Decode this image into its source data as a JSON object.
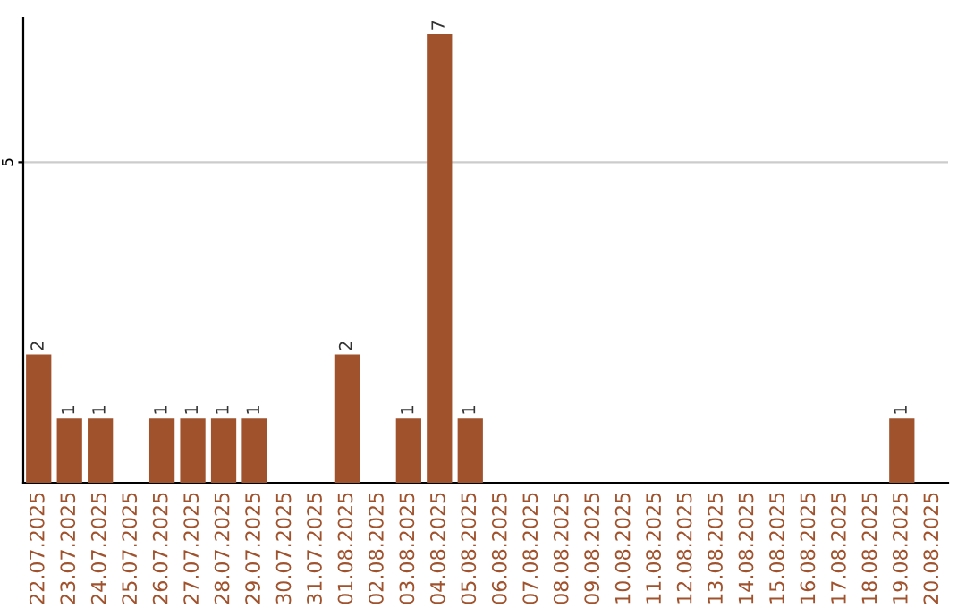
{
  "chart_data": {
    "type": "bar",
    "categories": [
      "22.07.2025",
      "23.07.2025",
      "24.07.2025",
      "25.07.2025",
      "26.07.2025",
      "27.07.2025",
      "28.07.2025",
      "29.07.2025",
      "30.07.2025",
      "31.07.2025",
      "01.08.2025",
      "02.08.2025",
      "03.08.2025",
      "04.08.2025",
      "05.08.2025",
      "06.08.2025",
      "07.08.2025",
      "08.08.2025",
      "09.08.2025",
      "10.08.2025",
      "11.08.2025",
      "12.08.2025",
      "13.08.2025",
      "14.08.2025",
      "15.08.2025",
      "16.08.2025",
      "17.08.2025",
      "18.08.2025",
      "19.08.2025",
      "20.08.2025"
    ],
    "values": [
      2,
      1,
      1,
      0,
      1,
      1,
      1,
      1,
      0,
      0,
      2,
      0,
      1,
      7,
      1,
      0,
      0,
      0,
      0,
      0,
      0,
      0,
      0,
      0,
      0,
      0,
      0,
      0,
      1,
      0
    ],
    "color": "#a0522d",
    "value_labels": [
      "2",
      "1",
      "1",
      null,
      "1",
      "1",
      "1",
      "1",
      null,
      null,
      "2",
      null,
      "1",
      "7",
      "1",
      null,
      null,
      null,
      null,
      null,
      null,
      null,
      null,
      null,
      null,
      null,
      null,
      null,
      "1",
      null
    ],
    "ylim": [
      0,
      7.25
    ],
    "yticks": [
      5
    ],
    "grid": "y"
  }
}
